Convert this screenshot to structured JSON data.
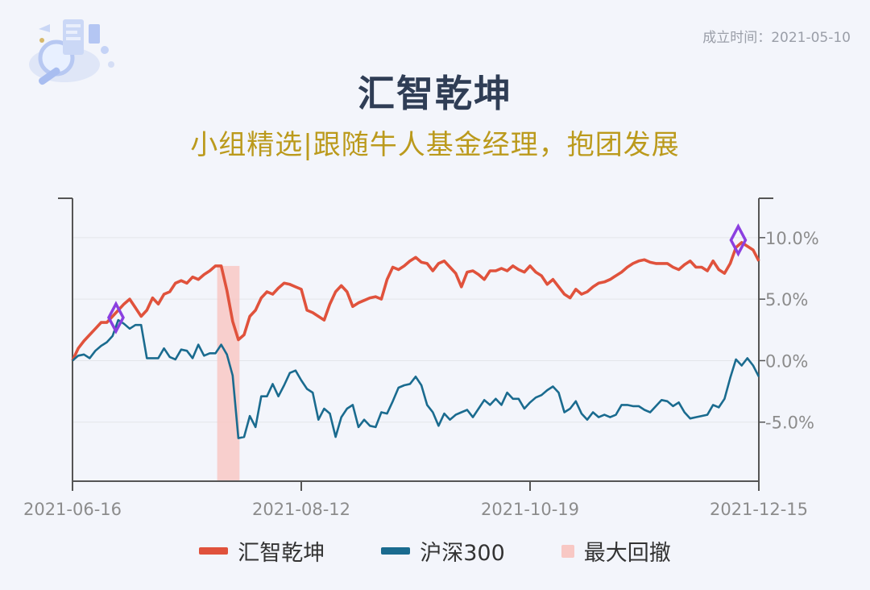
{
  "header": {
    "founded": "成立时间：2021-05-10",
    "title": "汇智乾坤",
    "subtitle": "小组精选|跟随牛人基金经理，抱团发展"
  },
  "legend": {
    "fund": "汇智乾坤",
    "index": "沪深300",
    "drawdown": "最大回撤"
  },
  "colors": {
    "fund": "#e0523c",
    "index": "#1a6b8f",
    "drawdown": "#f8c8c4",
    "marker": "#8b3fe0"
  },
  "chart_data": {
    "type": "line",
    "x_ticks": [
      "2021-06-16",
      "2021-08-12",
      "2021-10-19",
      "2021-12-15"
    ],
    "y_ticks": [
      "10.0%",
      "5.0%",
      "0.0%",
      "-5.0%"
    ],
    "y_tick_values": [
      10,
      5,
      0,
      -5
    ],
    "ylim": [
      -9.8,
      13.2
    ],
    "xlim": [
      0,
      120
    ],
    "drawdown_range": [
      25.3,
      29.2
    ],
    "markers": [
      {
        "x": 7.6,
        "y": 3.5
      },
      {
        "x": 116.4,
        "y": 9.8
      }
    ],
    "series": [
      {
        "name": "汇智乾坤",
        "values": [
          0.0,
          1.0,
          1.6,
          2.1,
          2.6,
          3.1,
          3.1,
          3.6,
          4.1,
          4.6,
          5.0,
          4.3,
          3.6,
          4.1,
          5.1,
          4.6,
          5.4,
          5.6,
          6.3,
          6.5,
          6.3,
          6.8,
          6.6,
          7.0,
          7.3,
          7.7,
          7.7,
          5.7,
          3.2,
          1.7,
          2.1,
          3.6,
          4.1,
          5.1,
          5.6,
          5.4,
          5.9,
          6.3,
          6.2,
          6.0,
          5.8,
          4.1,
          3.9,
          3.6,
          3.3,
          4.6,
          5.6,
          6.1,
          5.6,
          4.4,
          4.7,
          4.9,
          5.1,
          5.2,
          5.0,
          6.6,
          7.6,
          7.4,
          7.7,
          8.1,
          8.4,
          8.0,
          7.9,
          7.3,
          7.9,
          8.1,
          7.6,
          7.1,
          6.0,
          7.2,
          7.3,
          7.0,
          6.6,
          7.3,
          7.3,
          7.5,
          7.3,
          7.7,
          7.4,
          7.2,
          7.7,
          7.2,
          6.9,
          6.2,
          6.6,
          6.0,
          5.4,
          5.1,
          5.8,
          5.4,
          5.6,
          6.0,
          6.3,
          6.4,
          6.6,
          6.9,
          7.2,
          7.6,
          7.9,
          8.1,
          8.2,
          8.0,
          7.9,
          7.9,
          7.9,
          7.6,
          7.4,
          7.8,
          8.1,
          7.6,
          7.6,
          7.3,
          8.1,
          7.4,
          7.1,
          7.9,
          9.2,
          9.6,
          9.3,
          9.0,
          8.1
        ]
      },
      {
        "name": "沪深300",
        "values": [
          0.0,
          0.4,
          0.5,
          0.2,
          0.8,
          1.2,
          1.5,
          2.0,
          3.3,
          3.0,
          2.6,
          2.9,
          2.9,
          0.2,
          0.2,
          0.2,
          1.0,
          0.3,
          0.1,
          0.9,
          0.8,
          0.2,
          1.3,
          0.4,
          0.6,
          0.6,
          1.3,
          0.5,
          -1.2,
          -6.3,
          -6.2,
          -4.5,
          -5.4,
          -2.9,
          -2.9,
          -1.9,
          -2.9,
          -2.0,
          -1.0,
          -0.8,
          -1.6,
          -2.3,
          -2.6,
          -4.8,
          -3.9,
          -4.3,
          -6.2,
          -4.6,
          -3.9,
          -3.6,
          -5.4,
          -4.8,
          -5.3,
          -5.4,
          -4.2,
          -4.3,
          -3.3,
          -2.2,
          -2.0,
          -1.9,
          -1.3,
          -2.0,
          -3.6,
          -4.2,
          -5.3,
          -4.3,
          -4.8,
          -4.4,
          -4.2,
          -4.0,
          -4.6,
          -3.9,
          -3.2,
          -3.6,
          -3.1,
          -3.6,
          -2.6,
          -3.1,
          -3.1,
          -3.9,
          -3.4,
          -3.0,
          -2.8,
          -2.4,
          -2.1,
          -2.6,
          -4.2,
          -3.9,
          -3.3,
          -4.3,
          -4.8,
          -4.2,
          -4.6,
          -4.4,
          -4.6,
          -4.4,
          -3.6,
          -3.6,
          -3.7,
          -3.7,
          -4.0,
          -4.2,
          -3.7,
          -3.2,
          -3.3,
          -3.7,
          -3.4,
          -4.2,
          -4.7,
          -4.6,
          -4.5,
          -4.4,
          -3.6,
          -3.8,
          -3.1,
          -1.4,
          0.1,
          -0.4,
          0.2,
          -0.4,
          -1.3
        ]
      }
    ]
  }
}
